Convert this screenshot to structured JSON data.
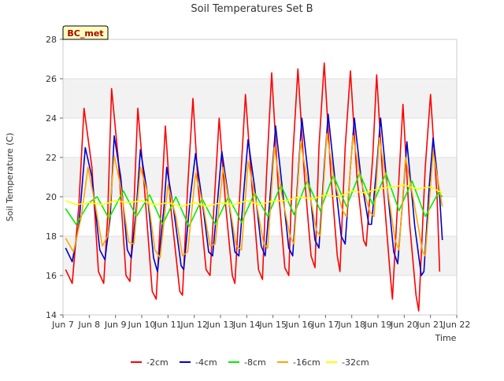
{
  "chart_data": {
    "type": "line",
    "title": "Soil Temperatures Set B",
    "xlabel": "Time",
    "ylabel": "Soil Temperature (C)",
    "ylim": [
      14,
      28
    ],
    "xlim": [
      "Jun 7",
      "Jun 22"
    ],
    "yticks": [
      "14",
      "16",
      "18",
      "20",
      "22",
      "24",
      "26",
      "28"
    ],
    "xticks": [
      "Jun 7",
      "Jun 8",
      "Jun 9",
      "Jun 10",
      "Jun 11",
      "Jun 12",
      "Jun 13",
      "Jun 14",
      "Jun 15",
      "Jun 16",
      "Jun 17",
      "Jun 18",
      "Jun 19",
      "Jun 20",
      "Jun 21",
      "Jun 22"
    ],
    "grid": "horizontal bands",
    "legend_position": "bottom",
    "badge": "BC_met",
    "x_unit": "days since Jun 7",
    "series": [
      {
        "name": "-2cm",
        "color": "#ff0000",
        "points": [
          [
            0.1,
            16.3
          ],
          [
            0.35,
            15.6
          ],
          [
            0.6,
            19.5
          ],
          [
            0.8,
            24.5
          ],
          [
            1.1,
            21.5
          ],
          [
            1.35,
            16.2
          ],
          [
            1.55,
            15.6
          ],
          [
            1.7,
            19.0
          ],
          [
            1.85,
            25.5
          ],
          [
            2.1,
            22.0
          ],
          [
            2.4,
            16.0
          ],
          [
            2.55,
            15.7
          ],
          [
            2.7,
            19.5
          ],
          [
            2.85,
            24.5
          ],
          [
            3.1,
            20.5
          ],
          [
            3.4,
            15.2
          ],
          [
            3.55,
            14.8
          ],
          [
            3.75,
            19.8
          ],
          [
            3.9,
            23.6
          ],
          [
            4.1,
            19.5
          ],
          [
            4.45,
            15.2
          ],
          [
            4.55,
            15.0
          ],
          [
            4.75,
            20.5
          ],
          [
            4.95,
            25.0
          ],
          [
            5.15,
            20.5
          ],
          [
            5.45,
            16.3
          ],
          [
            5.6,
            16.0
          ],
          [
            5.75,
            19.5
          ],
          [
            5.95,
            24.0
          ],
          [
            6.2,
            19.5
          ],
          [
            6.45,
            16.0
          ],
          [
            6.55,
            15.6
          ],
          [
            6.75,
            20.5
          ],
          [
            6.95,
            25.2
          ],
          [
            7.2,
            20.5
          ],
          [
            7.45,
            16.3
          ],
          [
            7.6,
            15.8
          ],
          [
            7.75,
            21.0
          ],
          [
            7.95,
            26.3
          ],
          [
            8.2,
            20.5
          ],
          [
            8.45,
            16.4
          ],
          [
            8.6,
            16.0
          ],
          [
            8.75,
            22.0
          ],
          [
            8.95,
            26.5
          ],
          [
            9.2,
            21.0
          ],
          [
            9.45,
            17.0
          ],
          [
            9.6,
            16.4
          ],
          [
            9.75,
            22.5
          ],
          [
            9.95,
            26.8
          ],
          [
            10.2,
            21.2
          ],
          [
            10.45,
            17.0
          ],
          [
            10.55,
            16.2
          ],
          [
            10.75,
            22.5
          ],
          [
            10.95,
            26.4
          ],
          [
            11.2,
            21.0
          ],
          [
            11.45,
            17.8
          ],
          [
            11.55,
            17.5
          ],
          [
            11.8,
            22.0
          ],
          [
            11.95,
            26.2
          ],
          [
            12.2,
            20.5
          ],
          [
            12.45,
            16.3
          ],
          [
            12.55,
            14.8
          ],
          [
            12.8,
            21.0
          ],
          [
            12.95,
            24.7
          ],
          [
            13.2,
            18.7
          ],
          [
            13.45,
            15.0
          ],
          [
            13.55,
            14.2
          ],
          [
            13.8,
            21.5
          ],
          [
            14.0,
            25.2
          ],
          [
            14.25,
            20.0
          ],
          [
            14.35,
            16.2
          ]
        ]
      },
      {
        "name": "-4cm",
        "color": "#0000cc",
        "points": [
          [
            0.1,
            17.4
          ],
          [
            0.35,
            16.7
          ],
          [
            0.6,
            18.5
          ],
          [
            0.85,
            22.5
          ],
          [
            1.1,
            21.0
          ],
          [
            1.4,
            17.3
          ],
          [
            1.6,
            16.8
          ],
          [
            1.8,
            19.0
          ],
          [
            1.95,
            23.1
          ],
          [
            2.2,
            21.0
          ],
          [
            2.45,
            17.3
          ],
          [
            2.6,
            16.9
          ],
          [
            2.8,
            19.5
          ],
          [
            2.95,
            22.4
          ],
          [
            3.2,
            20.3
          ],
          [
            3.45,
            16.9
          ],
          [
            3.6,
            16.2
          ],
          [
            3.85,
            19.5
          ],
          [
            3.95,
            21.5
          ],
          [
            4.2,
            19.5
          ],
          [
            4.5,
            16.5
          ],
          [
            4.6,
            16.3
          ],
          [
            4.85,
            20.0
          ],
          [
            5.05,
            22.2
          ],
          [
            5.3,
            19.8
          ],
          [
            5.55,
            17.2
          ],
          [
            5.7,
            17.0
          ],
          [
            5.9,
            20.0
          ],
          [
            6.05,
            22.3
          ],
          [
            6.3,
            20.0
          ],
          [
            6.55,
            17.2
          ],
          [
            6.7,
            17.0
          ],
          [
            6.9,
            20.5
          ],
          [
            7.05,
            22.9
          ],
          [
            7.3,
            20.5
          ],
          [
            7.55,
            17.5
          ],
          [
            7.7,
            17.0
          ],
          [
            7.95,
            21.0
          ],
          [
            8.1,
            23.6
          ],
          [
            8.35,
            20.5
          ],
          [
            8.6,
            17.4
          ],
          [
            8.75,
            17.0
          ],
          [
            8.95,
            21.0
          ],
          [
            9.1,
            24.0
          ],
          [
            9.35,
            21.0
          ],
          [
            9.6,
            17.8
          ],
          [
            9.75,
            17.4
          ],
          [
            9.95,
            21.5
          ],
          [
            10.1,
            24.2
          ],
          [
            10.35,
            21.0
          ],
          [
            10.6,
            18.0
          ],
          [
            10.75,
            17.6
          ],
          [
            10.95,
            21.5
          ],
          [
            11.1,
            24.0
          ],
          [
            11.35,
            21.0
          ],
          [
            11.65,
            18.6
          ],
          [
            11.75,
            18.6
          ],
          [
            11.95,
            21.5
          ],
          [
            12.1,
            24.0
          ],
          [
            12.35,
            20.5
          ],
          [
            12.6,
            17.2
          ],
          [
            12.75,
            16.6
          ],
          [
            12.95,
            20.0
          ],
          [
            13.1,
            22.8
          ],
          [
            13.4,
            18.5
          ],
          [
            13.65,
            16.0
          ],
          [
            13.75,
            16.2
          ],
          [
            13.95,
            20.5
          ],
          [
            14.1,
            23.0
          ],
          [
            14.35,
            20.0
          ],
          [
            14.45,
            17.8
          ]
        ]
      },
      {
        "name": "-8cm",
        "color": "#00ee00",
        "points": [
          [
            0.1,
            19.4
          ],
          [
            0.5,
            18.6
          ],
          [
            1.0,
            19.7
          ],
          [
            1.3,
            20.0
          ],
          [
            1.75,
            18.9
          ],
          [
            2.3,
            20.3
          ],
          [
            2.8,
            19.0
          ],
          [
            3.3,
            20.1
          ],
          [
            3.8,
            18.6
          ],
          [
            4.3,
            20.0
          ],
          [
            4.8,
            18.5
          ],
          [
            5.3,
            19.9
          ],
          [
            5.8,
            18.6
          ],
          [
            6.3,
            20.0
          ],
          [
            6.8,
            18.7
          ],
          [
            7.3,
            20.2
          ],
          [
            7.8,
            19.0
          ],
          [
            8.3,
            20.6
          ],
          [
            8.8,
            19.1
          ],
          [
            9.3,
            20.8
          ],
          [
            9.8,
            19.3
          ],
          [
            10.3,
            21.1
          ],
          [
            10.8,
            19.5
          ],
          [
            11.3,
            21.2
          ],
          [
            11.8,
            19.6
          ],
          [
            12.3,
            21.2
          ],
          [
            12.8,
            19.3
          ],
          [
            13.3,
            20.8
          ],
          [
            13.8,
            19.0
          ],
          [
            14.3,
            20.2
          ],
          [
            14.45,
            20.0
          ]
        ]
      },
      {
        "name": "-16cm",
        "color": "#ffa500",
        "points": [
          [
            0.1,
            17.9
          ],
          [
            0.4,
            17.2
          ],
          [
            0.7,
            19.0
          ],
          [
            0.95,
            21.5
          ],
          [
            1.2,
            19.8
          ],
          [
            1.5,
            17.5
          ],
          [
            1.7,
            18.0
          ],
          [
            1.95,
            22.1
          ],
          [
            2.2,
            20.5
          ],
          [
            2.5,
            17.7
          ],
          [
            2.7,
            17.6
          ],
          [
            2.95,
            21.5
          ],
          [
            3.2,
            20.3
          ],
          [
            3.5,
            17.3
          ],
          [
            3.7,
            16.9
          ],
          [
            4.0,
            20.6
          ],
          [
            4.3,
            19.0
          ],
          [
            4.55,
            17.0
          ],
          [
            4.75,
            17.2
          ],
          [
            5.05,
            21.2
          ],
          [
            5.35,
            19.5
          ],
          [
            5.6,
            17.5
          ],
          [
            5.8,
            17.6
          ],
          [
            6.1,
            21.5
          ],
          [
            6.35,
            19.5
          ],
          [
            6.6,
            17.5
          ],
          [
            6.8,
            17.3
          ],
          [
            7.05,
            21.8
          ],
          [
            7.35,
            19.8
          ],
          [
            7.65,
            17.6
          ],
          [
            7.8,
            17.4
          ],
          [
            8.05,
            22.5
          ],
          [
            8.35,
            20.0
          ],
          [
            8.65,
            18.0
          ],
          [
            8.8,
            17.6
          ],
          [
            9.05,
            22.8
          ],
          [
            9.35,
            20.5
          ],
          [
            9.65,
            18.3
          ],
          [
            9.8,
            18.0
          ],
          [
            10.05,
            23.2
          ],
          [
            10.35,
            20.7
          ],
          [
            10.65,
            19.3
          ],
          [
            10.8,
            19.0
          ],
          [
            11.05,
            23.1
          ],
          [
            11.35,
            20.8
          ],
          [
            11.7,
            19.2
          ],
          [
            11.85,
            19.0
          ],
          [
            12.05,
            23.0
          ],
          [
            12.35,
            20.5
          ],
          [
            12.65,
            17.8
          ],
          [
            12.8,
            17.3
          ],
          [
            13.05,
            22.0
          ],
          [
            13.4,
            19.5
          ],
          [
            13.7,
            17.2
          ],
          [
            13.8,
            17.0
          ],
          [
            14.1,
            22.3
          ],
          [
            14.35,
            20.3
          ],
          [
            14.45,
            19.5
          ]
        ]
      },
      {
        "name": "-32cm",
        "color": "#ffff00",
        "points": [
          [
            0.1,
            19.8
          ],
          [
            0.5,
            19.6
          ],
          [
            1.0,
            19.7
          ],
          [
            1.5,
            19.6
          ],
          [
            2.0,
            19.8
          ],
          [
            2.5,
            19.7
          ],
          [
            3.0,
            19.8
          ],
          [
            3.5,
            19.6
          ],
          [
            4.0,
            19.7
          ],
          [
            4.5,
            19.5
          ],
          [
            5.0,
            19.7
          ],
          [
            5.5,
            19.5
          ],
          [
            6.0,
            19.7
          ],
          [
            6.5,
            19.6
          ],
          [
            7.0,
            19.8
          ],
          [
            7.5,
            19.6
          ],
          [
            8.0,
            19.8
          ],
          [
            8.5,
            19.8
          ],
          [
            9.0,
            20.0
          ],
          [
            9.5,
            19.9
          ],
          [
            10.0,
            20.1
          ],
          [
            10.5,
            20.0
          ],
          [
            11.0,
            20.3
          ],
          [
            11.5,
            20.2
          ],
          [
            12.0,
            20.4
          ],
          [
            12.5,
            20.5
          ],
          [
            13.0,
            20.6
          ],
          [
            13.5,
            20.4
          ],
          [
            14.0,
            20.5
          ],
          [
            14.45,
            20.2
          ]
        ]
      }
    ]
  }
}
